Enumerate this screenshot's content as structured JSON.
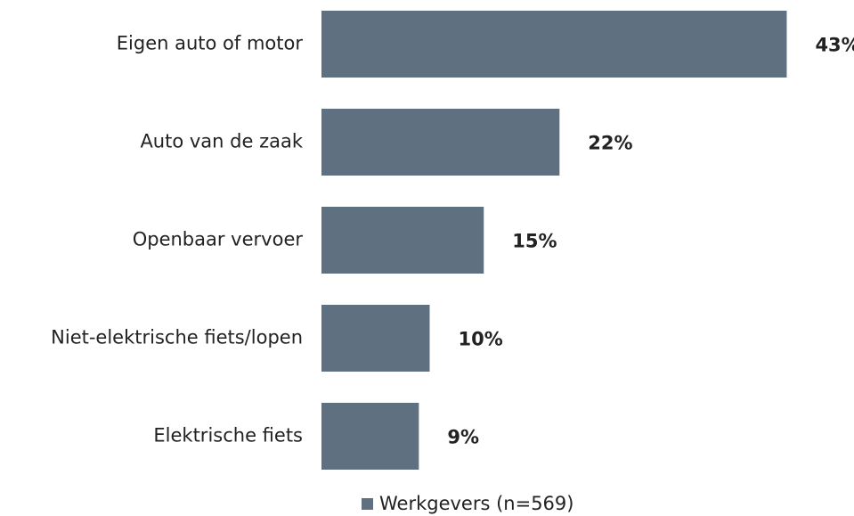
{
  "chart_data": {
    "type": "bar",
    "orientation": "horizontal",
    "categories": [
      "Eigen auto of motor",
      "Auto van de zaak",
      "Openbaar vervoer",
      "Niet-elektrische fiets/lopen",
      "Elektrische fiets"
    ],
    "series": [
      {
        "name": "Werkgevers (n=569)",
        "color": "#5f7180",
        "values": [
          43,
          22,
          15,
          10,
          9
        ],
        "value_labels": [
          "43%",
          "22%",
          "15%",
          "10%",
          "9%"
        ]
      }
    ],
    "legend": "bottom"
  }
}
